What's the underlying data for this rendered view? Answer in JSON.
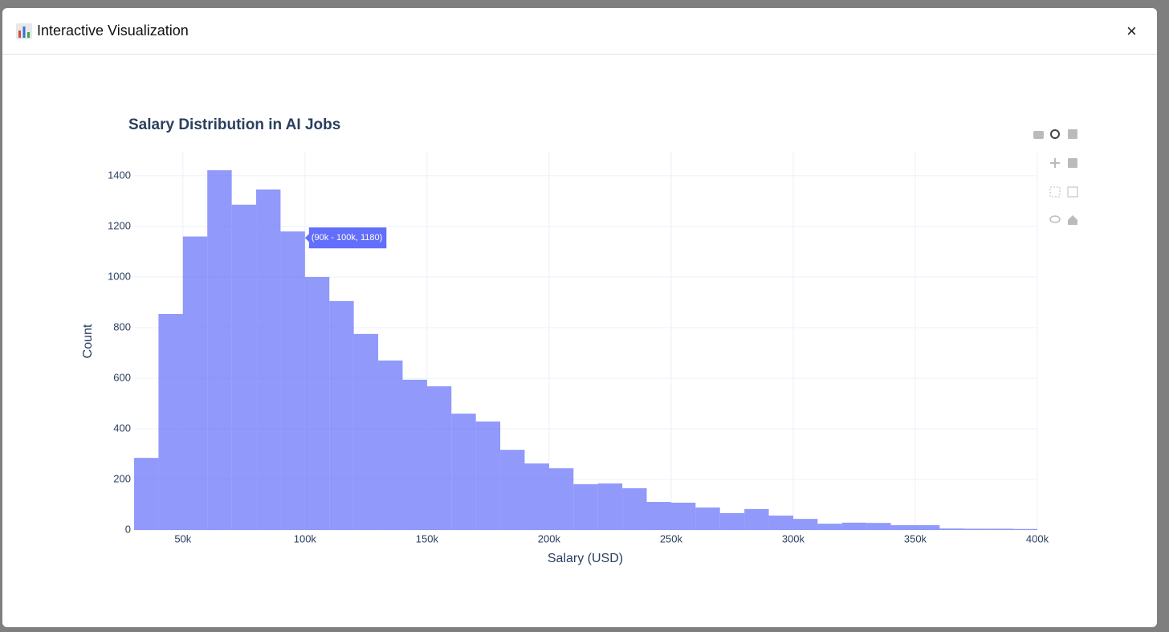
{
  "header": {
    "title": "Interactive Visualization",
    "close": "×"
  },
  "chart_data": {
    "type": "histogram",
    "title": "Salary Distribution in AI Jobs",
    "x_label": "Salary (USD)",
    "y_label": "Count",
    "bins": [
      30000,
      40000,
      50000,
      60000,
      70000,
      80000,
      90000,
      100000,
      110000,
      120000,
      130000,
      140000,
      150000,
      160000,
      170000,
      180000,
      190000,
      200000,
      210000,
      220000,
      230000,
      240000,
      250000,
      260000,
      270000,
      280000,
      290000,
      300000,
      310000,
      320000,
      330000,
      340000,
      350000,
      360000,
      370000,
      380000,
      390000,
      400000
    ],
    "values": [
      285,
      854,
      1160,
      1422,
      1286,
      1346,
      1180,
      1000,
      905,
      775,
      670,
      594,
      568,
      460,
      429,
      317,
      263,
      244,
      181,
      184,
      165,
      111,
      108,
      89,
      67,
      83,
      57,
      44,
      25,
      29,
      28,
      19,
      19,
      6,
      5,
      5,
      4
    ],
    "color": "#636efa",
    "opacity": 0.7,
    "xlim": [
      30000,
      400000
    ],
    "ylim": [
      0,
      1495
    ],
    "xticks": [
      {
        "value": 50000,
        "label": "50k"
      },
      {
        "value": 100000,
        "label": "100k"
      },
      {
        "value": 150000,
        "label": "150k"
      },
      {
        "value": 200000,
        "label": "200k"
      },
      {
        "value": 250000,
        "label": "250k"
      },
      {
        "value": 300000,
        "label": "300k"
      },
      {
        "value": 350000,
        "label": "350k"
      },
      {
        "value": 400000,
        "label": "400k"
      }
    ],
    "yticks": [
      0,
      200,
      400,
      600,
      800,
      1000,
      1200,
      1400
    ],
    "grid": true,
    "tooltip": "(90k - 100k, 1180)"
  }
}
